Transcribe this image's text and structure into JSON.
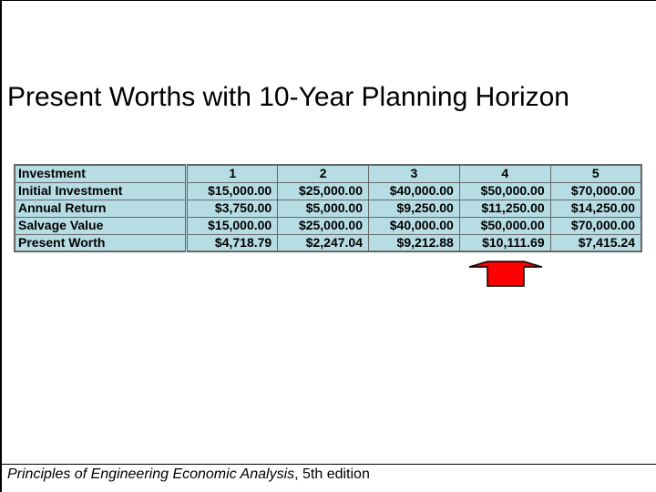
{
  "slide": {
    "title": "Present Worths with 10-Year Planning Horizon",
    "footer_italic": "Principles of Engineering Economic Analysis",
    "footer_rest": ", 5th edition"
  },
  "table": {
    "header": [
      "Investment",
      "1",
      "2",
      "3",
      "4",
      "5"
    ],
    "rows": [
      [
        "Initial Investment",
        "$15,000.00",
        "$25,000.00",
        "$40,000.00",
        "$50,000.00",
        "$70,000.00"
      ],
      [
        "Annual Return",
        "$3,750.00",
        "$5,000.00",
        "$9,250.00",
        "$11,250.00",
        "$14,250.00"
      ],
      [
        "Salvage Value",
        "$15,000.00",
        "$25,000.00",
        "$40,000.00",
        "$50,000.00",
        "$70,000.00"
      ],
      [
        "Present Worth",
        "$4,718.79",
        "$2,247.04",
        "$9,212.88",
        "$10,111.69",
        "$7,415.24"
      ]
    ]
  },
  "colors": {
    "table_fill": "#b7dde4",
    "arrow_fill": "#ff0000"
  },
  "highlight": {
    "marked_column": "4",
    "icon": "up-arrow-icon"
  }
}
